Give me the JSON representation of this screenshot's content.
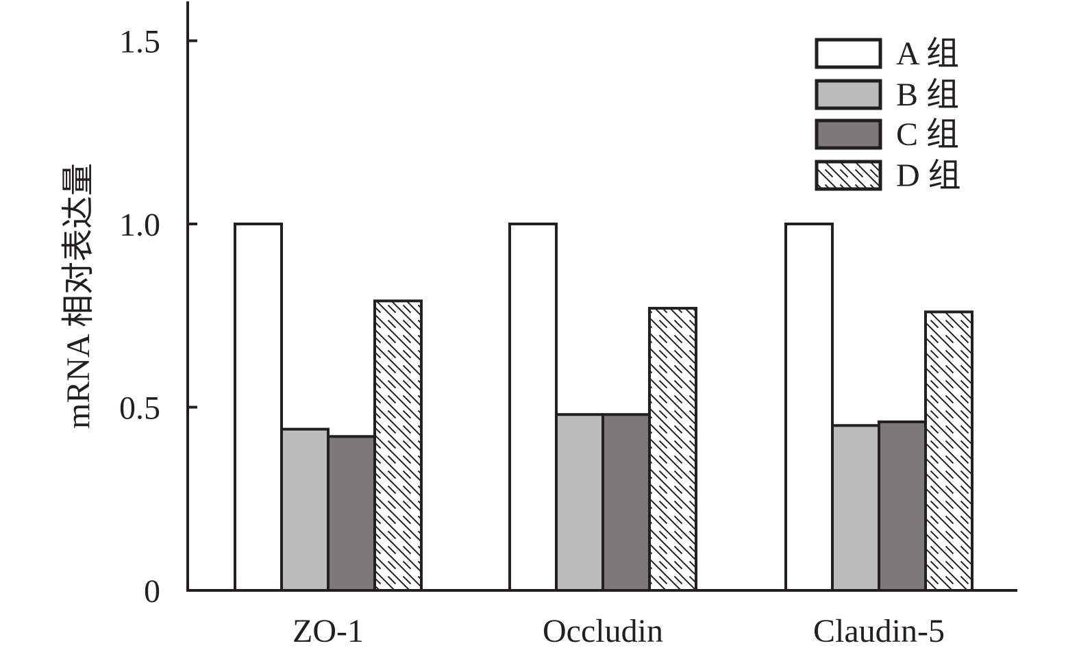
{
  "chart_data": {
    "type": "bar",
    "title": "",
    "xlabel": "",
    "ylabel": "mRNA 相对表达量",
    "ylim": [
      0,
      1.6
    ],
    "yticks": [
      0,
      0.5,
      1.0,
      1.5
    ],
    "ytick_labels": [
      "0",
      "0.5",
      "1.0",
      "1.5"
    ],
    "grid": false,
    "legend_position": "top-right",
    "categories": [
      "ZO-1",
      "Occludin",
      "Claudin-5"
    ],
    "series": [
      {
        "name": "A 组",
        "values": [
          1.0,
          1.0,
          1.0
        ],
        "fill": "#ffffff",
        "pattern": "none"
      },
      {
        "name": "B 组",
        "values": [
          0.44,
          0.48,
          0.45
        ],
        "fill": "#bcbcbc",
        "pattern": "none"
      },
      {
        "name": "C 组",
        "values": [
          0.42,
          0.48,
          0.46
        ],
        "fill": "#7b7979",
        "pattern": "none"
      },
      {
        "name": "D 组",
        "values": [
          0.79,
          0.77,
          0.76
        ],
        "fill": "#ffffff",
        "pattern": "diagonal-hatch"
      }
    ],
    "colors": {
      "axis": "#231f20",
      "outline": "#231f20"
    }
  }
}
